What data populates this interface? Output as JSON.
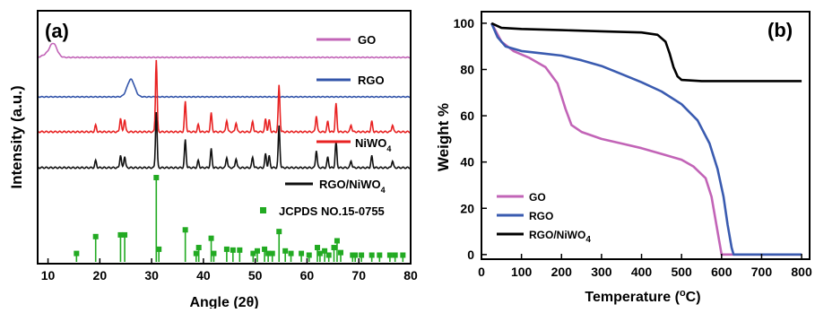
{
  "chart_data": [
    {
      "type": "line",
      "panel_label": "(a)",
      "xlabel": "Angle (2θ)",
      "ylabel": "Intensity (a.u.)",
      "xlim": [
        8,
        80
      ],
      "x_ticks": [
        10,
        20,
        30,
        40,
        50,
        60,
        70,
        80
      ],
      "y_ticks_shown": false,
      "series": [
        {
          "name": "GO",
          "color": "#c264b7",
          "peaks": [
            {
              "x": 11,
              "y": 0.6
            },
            {
              "x": 9.5,
              "y": 0.1
            }
          ]
        },
        {
          "name": "RGO",
          "color": "#3355aa",
          "peaks": [
            {
              "x": 26,
              "y": 0.75
            }
          ]
        },
        {
          "name": "NiWO4",
          "color": "#e82222",
          "peaks": [
            {
              "x": 19.2,
              "y": 0.28
            },
            {
              "x": 24,
              "y": 0.6
            },
            {
              "x": 24.8,
              "y": 0.55
            },
            {
              "x": 30.9,
              "y": 3.1
            },
            {
              "x": 36.5,
              "y": 1.3
            },
            {
              "x": 39,
              "y": 0.3
            },
            {
              "x": 41.5,
              "y": 0.8
            },
            {
              "x": 44.5,
              "y": 0.5
            },
            {
              "x": 46.3,
              "y": 0.4
            },
            {
              "x": 49.5,
              "y": 0.45
            },
            {
              "x": 52,
              "y": 0.55
            },
            {
              "x": 52.7,
              "y": 0.5
            },
            {
              "x": 54.6,
              "y": 2.0
            },
            {
              "x": 61.8,
              "y": 0.7
            },
            {
              "x": 64,
              "y": 0.45
            },
            {
              "x": 65.6,
              "y": 1.2
            },
            {
              "x": 68.5,
              "y": 0.3
            },
            {
              "x": 72.5,
              "y": 0.45
            },
            {
              "x": 76.5,
              "y": 0.3
            }
          ]
        },
        {
          "name": "RGO/NiWO4",
          "color": "#111111",
          "peaks": [
            {
              "x": 19.2,
              "y": 0.3
            },
            {
              "x": 24,
              "y": 0.55
            },
            {
              "x": 24.8,
              "y": 0.5
            },
            {
              "x": 30.9,
              "y": 2.4
            },
            {
              "x": 36.5,
              "y": 1.2
            },
            {
              "x": 39,
              "y": 0.3
            },
            {
              "x": 41.5,
              "y": 0.8
            },
            {
              "x": 44.5,
              "y": 0.45
            },
            {
              "x": 46.3,
              "y": 0.4
            },
            {
              "x": 49.5,
              "y": 0.45
            },
            {
              "x": 52,
              "y": 0.6
            },
            {
              "x": 52.7,
              "y": 0.5
            },
            {
              "x": 54.6,
              "y": 1.8
            },
            {
              "x": 61.8,
              "y": 0.75
            },
            {
              "x": 64,
              "y": 0.45
            },
            {
              "x": 65.6,
              "y": 1.1
            },
            {
              "x": 68.5,
              "y": 0.3
            },
            {
              "x": 72.5,
              "y": 0.5
            },
            {
              "x": 76.5,
              "y": 0.3
            }
          ]
        }
      ],
      "reference": {
        "name": "JCPDS NO.15-0755",
        "color": "#22aa22",
        "sticks": [
          {
            "x": 15.5,
            "h": 0.1
          },
          {
            "x": 19.2,
            "h": 0.3
          },
          {
            "x": 24,
            "h": 0.32
          },
          {
            "x": 24.8,
            "h": 0.32
          },
          {
            "x": 30.9,
            "h": 1.0
          },
          {
            "x": 31.4,
            "h": 0.15
          },
          {
            "x": 36.5,
            "h": 0.38
          },
          {
            "x": 38.6,
            "h": 0.1
          },
          {
            "x": 39.1,
            "h": 0.17
          },
          {
            "x": 41.5,
            "h": 0.28
          },
          {
            "x": 42,
            "h": 0.1
          },
          {
            "x": 44.5,
            "h": 0.15
          },
          {
            "x": 45.7,
            "h": 0.14
          },
          {
            "x": 47,
            "h": 0.14
          },
          {
            "x": 49.6,
            "h": 0.1
          },
          {
            "x": 50.4,
            "h": 0.13
          },
          {
            "x": 51.8,
            "h": 0.15
          },
          {
            "x": 52.5,
            "h": 0.1
          },
          {
            "x": 53.3,
            "h": 0.1
          },
          {
            "x": 54.6,
            "h": 0.36
          },
          {
            "x": 55.8,
            "h": 0.13
          },
          {
            "x": 56.9,
            "h": 0.1
          },
          {
            "x": 58.9,
            "h": 0.1
          },
          {
            "x": 60.4,
            "h": 0.08
          },
          {
            "x": 62,
            "h": 0.17
          },
          {
            "x": 62.5,
            "h": 0.1
          },
          {
            "x": 63.4,
            "h": 0.13
          },
          {
            "x": 64.2,
            "h": 0.08
          },
          {
            "x": 65.2,
            "h": 0.17
          },
          {
            "x": 65.8,
            "h": 0.25
          },
          {
            "x": 66.5,
            "h": 0.11
          },
          {
            "x": 68.8,
            "h": 0.08
          },
          {
            "x": 69.3,
            "h": 0.08
          },
          {
            "x": 70.5,
            "h": 0.08
          },
          {
            "x": 72.5,
            "h": 0.08
          },
          {
            "x": 74,
            "h": 0.08
          },
          {
            "x": 76,
            "h": 0.08
          },
          {
            "x": 77,
            "h": 0.08
          },
          {
            "x": 78.5,
            "h": 0.08
          }
        ]
      }
    },
    {
      "type": "line",
      "panel_label": "(b)",
      "xlabel": "Temperature (ºC)",
      "ylabel": "Weight %",
      "xlim": [
        0,
        820
      ],
      "ylim": [
        -2,
        105
      ],
      "x_ticks": [
        0,
        100,
        200,
        300,
        400,
        500,
        600,
        700,
        800
      ],
      "y_ticks": [
        0,
        20,
        40,
        60,
        80,
        100
      ],
      "legend_position": "bottom-left",
      "series": [
        {
          "name": "GO",
          "color": "#c264b7",
          "x": [
            25,
            50,
            80,
            120,
            160,
            190,
            210,
            225,
            250,
            300,
            350,
            400,
            450,
            500,
            530,
            560,
            575,
            590,
            600,
            800
          ],
          "y": [
            100,
            92,
            88,
            85,
            81,
            74,
            63,
            56,
            53,
            50,
            48,
            46,
            43.5,
            41,
            38,
            33,
            25,
            10,
            0,
            0
          ]
        },
        {
          "name": "RGO",
          "color": "#3a5bb0",
          "x": [
            25,
            40,
            60,
            100,
            150,
            200,
            250,
            300,
            350,
            400,
            450,
            500,
            540,
            570,
            590,
            605,
            615,
            625,
            630,
            800
          ],
          "y": [
            100,
            94,
            90,
            88,
            87,
            86,
            84,
            81.5,
            78,
            74.5,
            70.5,
            65,
            58,
            48,
            37,
            25,
            13,
            3,
            0,
            0
          ]
        },
        {
          "name": "RGO/NiWO4",
          "color": "#000000",
          "x": [
            25,
            50,
            100,
            200,
            300,
            400,
            440,
            460,
            470,
            480,
            490,
            500,
            550,
            600,
            700,
            800
          ],
          "y": [
            100,
            98,
            97.5,
            97,
            96.5,
            96,
            95,
            92,
            87,
            81,
            77,
            75.5,
            75,
            75,
            75,
            75
          ]
        }
      ]
    }
  ]
}
